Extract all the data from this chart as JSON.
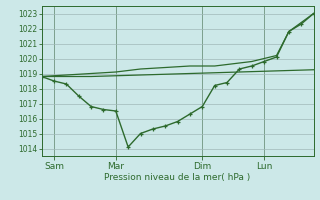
{
  "bg_color": "#cce8e8",
  "grid_color": "#a0b8b8",
  "line_color": "#2d6a2d",
  "ylabel": "Pression niveau de la mer( hPa )",
  "ylim": [
    1013.5,
    1023.5
  ],
  "yticks": [
    1014,
    1015,
    1016,
    1017,
    1018,
    1019,
    1020,
    1021,
    1022,
    1023
  ],
  "xtick_labels": [
    "Sam",
    "Mar",
    "Dim",
    "Lun"
  ],
  "xtick_positions": [
    0.5,
    3.0,
    6.5,
    9.0
  ],
  "xmin": 0.0,
  "xmax": 11.0,
  "main_line_x": [
    0.0,
    0.5,
    1.0,
    1.5,
    2.0,
    2.5,
    3.0,
    3.5,
    4.0,
    4.5,
    5.0,
    5.5,
    6.0,
    6.5,
    7.0,
    7.5,
    8.0,
    8.5,
    9.0,
    9.5,
    10.0,
    10.5,
    11.0
  ],
  "main_line_y": [
    1018.8,
    1018.5,
    1018.3,
    1017.5,
    1016.8,
    1016.6,
    1016.5,
    1014.1,
    1015.0,
    1015.3,
    1015.5,
    1015.8,
    1016.3,
    1016.8,
    1018.2,
    1018.4,
    1019.3,
    1019.5,
    1019.8,
    1020.1,
    1021.8,
    1022.3,
    1023.0
  ],
  "upper_line_x": [
    0.0,
    1.0,
    2.0,
    3.0,
    4.0,
    5.0,
    6.0,
    6.5,
    7.0,
    7.5,
    8.0,
    8.5,
    9.0,
    9.5,
    10.0,
    10.5,
    11.0
  ],
  "upper_line_y": [
    1018.8,
    1018.9,
    1019.0,
    1019.1,
    1019.3,
    1019.4,
    1019.5,
    1019.5,
    1019.5,
    1019.6,
    1019.7,
    1019.8,
    1020.0,
    1020.2,
    1021.8,
    1022.4,
    1023.0
  ],
  "lower_line_x": [
    0.0,
    1.0,
    2.0,
    3.0,
    4.0,
    5.0,
    6.0,
    7.0,
    8.0,
    9.0,
    10.0,
    11.0
  ],
  "lower_line_y": [
    1018.8,
    1018.8,
    1018.8,
    1018.85,
    1018.9,
    1018.95,
    1019.0,
    1019.05,
    1019.1,
    1019.15,
    1019.2,
    1019.25
  ]
}
